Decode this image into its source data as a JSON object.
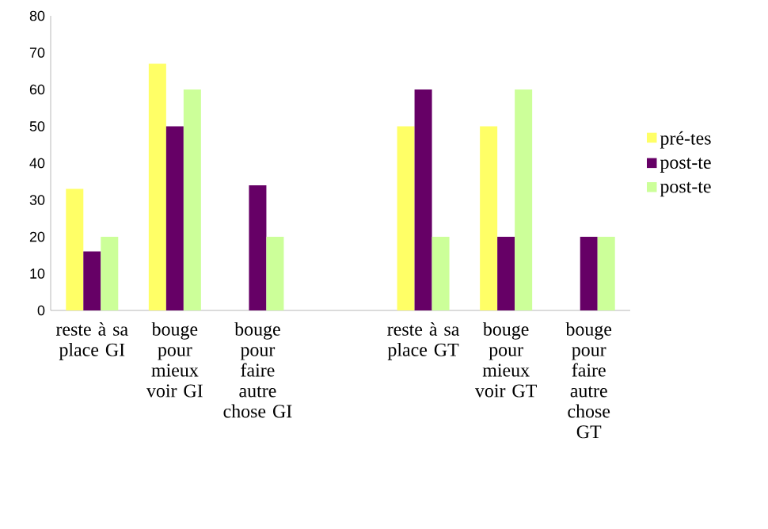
{
  "chart_data": {
    "type": "bar",
    "categories": [
      "reste à sa place GI",
      "bouge pour mieux voir GI",
      "bouge pour faire autre chose GI",
      null,
      "reste à sa place GT",
      "bouge pour mieux voir GT",
      "bouge pour faire autre chose GT"
    ],
    "series": [
      {
        "name": "pré-tes",
        "color": "#ffff66",
        "values": [
          33,
          67,
          null,
          null,
          50,
          50,
          null
        ]
      },
      {
        "name": "post-te",
        "color": "#660066",
        "values": [
          16,
          50,
          34,
          null,
          60,
          20,
          20
        ]
      },
      {
        "name": "post-te",
        "color": "#ccff99",
        "values": [
          20,
          60,
          20,
          null,
          20,
          60,
          20
        ]
      }
    ],
    "ylim": [
      0,
      80
    ],
    "yticks": [
      0,
      10,
      20,
      30,
      40,
      50,
      60,
      70,
      80
    ],
    "grid": false,
    "legend": "right"
  }
}
